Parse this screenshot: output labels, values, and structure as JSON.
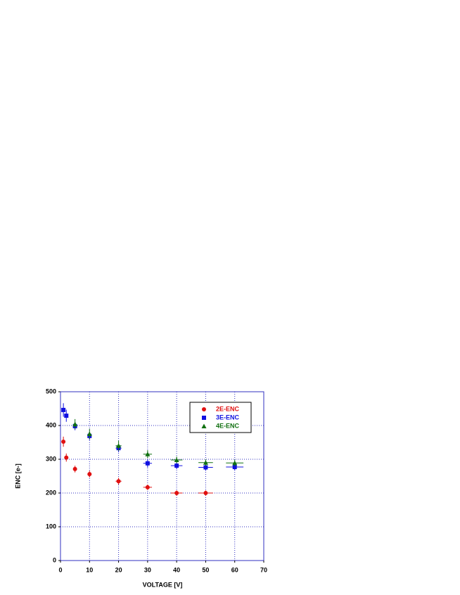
{
  "chart_data": {
    "type": "scatter",
    "xlabel": "VOLTAGE [V]",
    "ylabel": "ENC [e-]",
    "xlim": [
      0,
      70
    ],
    "xticks": [
      0,
      10,
      20,
      30,
      40,
      50,
      60,
      70
    ],
    "ylim": [
      0,
      500
    ],
    "yticks": [
      0,
      100,
      200,
      300,
      400,
      500
    ],
    "grid": true,
    "legend": "upper right",
    "series": [
      {
        "name": "2E-ENC",
        "color": "#e01010",
        "marker": "circle",
        "x": [
          1,
          2,
          5,
          10,
          20,
          30,
          40,
          50
        ],
        "values": [
          352,
          305,
          271,
          256,
          235,
          217,
          200,
          200
        ],
        "yerr": [
          15,
          12,
          10,
          10,
          10,
          8,
          8,
          8
        ],
        "xerr": [
          0.5,
          0.5,
          0.5,
          0.5,
          1,
          1.5,
          2,
          2.5
        ]
      },
      {
        "name": "3E-ENC",
        "color": "#1010e0",
        "marker": "square",
        "x": [
          1,
          2,
          5,
          10,
          20,
          30,
          40,
          50,
          60
        ],
        "values": [
          446,
          429,
          398,
          369,
          333,
          288,
          281,
          276,
          277
        ],
        "yerr": [
          20,
          18,
          12,
          12,
          12,
          12,
          10,
          10,
          10
        ],
        "xerr": [
          0.5,
          0.5,
          0.5,
          0.5,
          1,
          1.5,
          2,
          2.5,
          3
        ]
      },
      {
        "name": "4E-ENC",
        "color": "#107010",
        "marker": "triangle",
        "x": [
          5,
          10,
          20,
          30,
          40,
          50,
          60
        ],
        "values": [
          404,
          375,
          340,
          315,
          298,
          290,
          289
        ],
        "yerr": [
          15,
          15,
          15,
          12,
          10,
          10,
          10
        ],
        "xerr": [
          0.5,
          0.5,
          1,
          1.5,
          2,
          2.5,
          3
        ]
      }
    ]
  }
}
